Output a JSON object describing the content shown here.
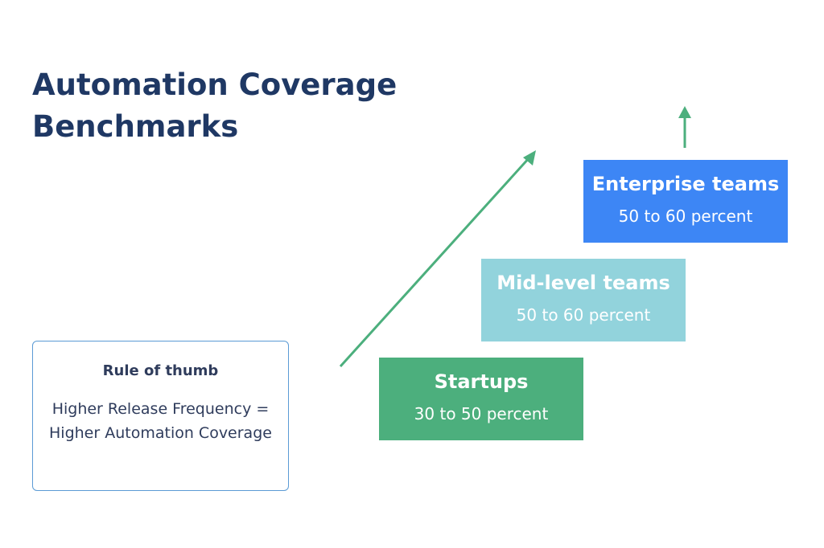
{
  "title": "Automation Coverage Benchmarks",
  "rule": {
    "heading": "Rule of thumb",
    "body": "Higher Release Frequency = Higher Automation Coverage"
  },
  "tiers": [
    {
      "name": "Startups",
      "range": "30 to 50 percent"
    },
    {
      "name": "Mid-level teams",
      "range": "50 to 60 percent"
    },
    {
      "name": "Enterprise teams",
      "range": "50 to 60 percent"
    }
  ]
}
